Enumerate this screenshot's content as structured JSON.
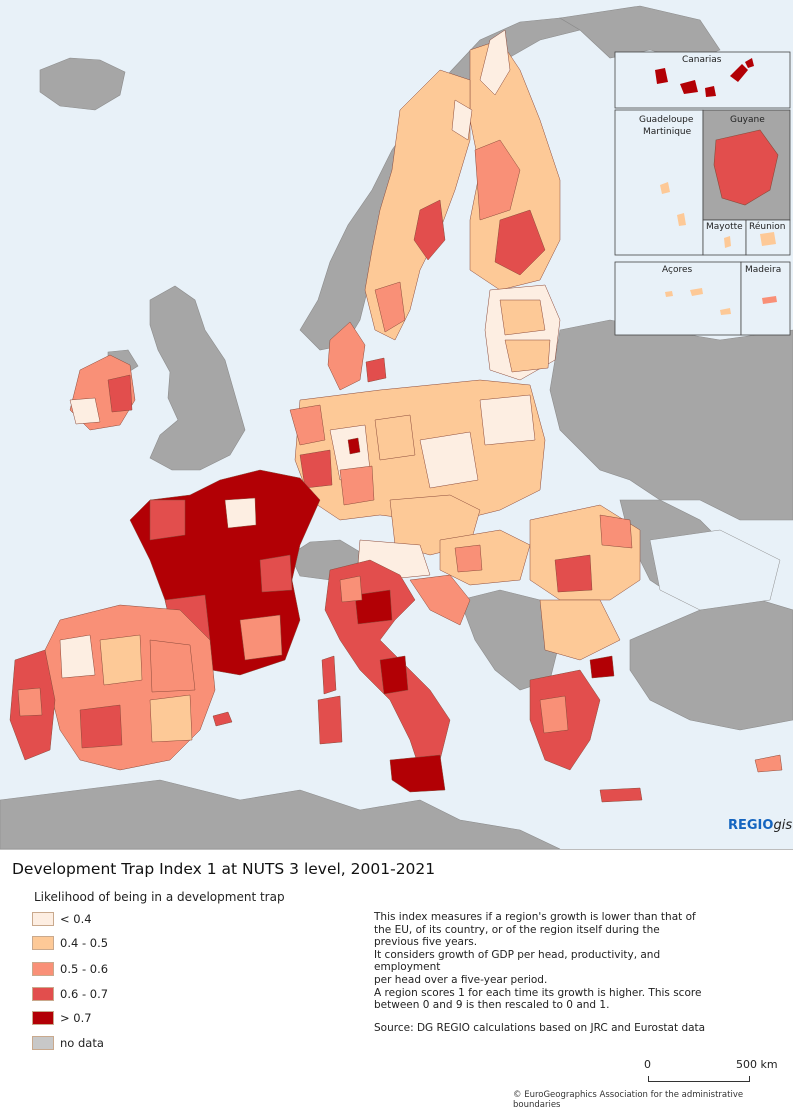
{
  "map": {
    "inset_labels": {
      "canarias": "Canarias",
      "guadeloupe": "Guadeloupe",
      "martinique": "Martinique",
      "guyane": "Guyane",
      "mayotte": "Mayotte",
      "reunion": "Réunion",
      "acores": "Açores",
      "madeira": "Madeira"
    },
    "logo": {
      "bold": "REGIO",
      "italic": "gis"
    },
    "colors": {
      "sea": "#e8f1f8",
      "non_eu_land": "#a6a6a6",
      "class_lt_0_4": "#fdeee2",
      "class_0_4_0_5": "#fdc997",
      "class_0_5_0_6": "#f99077",
      "class_0_6_0_7": "#e24e4d",
      "class_gt_0_7": "#b20005",
      "no_data": "#c8c8c8"
    }
  },
  "title": "Development Trap Index 1 at NUTS 3 level, 2001-2021",
  "legend": {
    "heading": "Likelihood of being in a development trap",
    "items": [
      {
        "label": "< 0.4",
        "color": "#fdeee2"
      },
      {
        "label": "0.4 - 0.5",
        "color": "#fdc997"
      },
      {
        "label": "0.5 - 0.6",
        "color": "#f99077"
      },
      {
        "label": "0.6 - 0.7",
        "color": "#e24e4d"
      },
      {
        "label": "> 0.7",
        "color": "#b20005"
      },
      {
        "label": "no data",
        "color": "#c8c8c8"
      }
    ]
  },
  "description": {
    "line1": "This index measures if a region's growth is lower than that of",
    "line2": "the EU, of its country, or of the region itself during the",
    "line3": "previous five years.",
    "line4": "It considers growth of GDP per head, productivity, and employment",
    "line5": "per head over a five-year period.",
    "line6": "A region scores 1 for each time its growth is higher. This score",
    "line7": "between 0 and 9 is then rescaled to 0 and 1."
  },
  "source": "Source: DG REGIO calculations based on JRC and Eurostat data",
  "scale": {
    "zero": "0",
    "max": "500 km"
  },
  "copyright": "© EuroGeographics Association for the administrative boundaries"
}
